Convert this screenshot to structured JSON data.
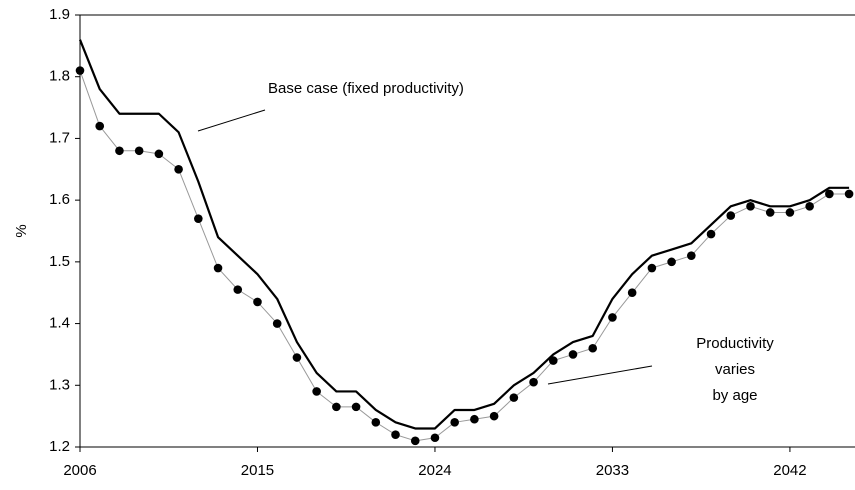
{
  "chart_data": {
    "type": "line",
    "y_label": "%",
    "x": [
      2006,
      2007,
      2008,
      2009,
      2010,
      2011,
      2012,
      2013,
      2014,
      2015,
      2016,
      2017,
      2018,
      2019,
      2020,
      2021,
      2022,
      2023,
      2024,
      2025,
      2026,
      2027,
      2028,
      2029,
      2030,
      2031,
      2032,
      2033,
      2034,
      2035,
      2036,
      2037,
      2038,
      2039,
      2040,
      2041,
      2042,
      2043,
      2044,
      2045
    ],
    "series": [
      {
        "name": "Base case (fixed productivity)",
        "color": "#000000",
        "marker": false,
        "values": [
          1.86,
          1.78,
          1.74,
          1.74,
          1.74,
          1.71,
          1.63,
          1.54,
          1.51,
          1.48,
          1.44,
          1.37,
          1.32,
          1.29,
          1.29,
          1.26,
          1.24,
          1.23,
          1.23,
          1.26,
          1.26,
          1.27,
          1.3,
          1.32,
          1.35,
          1.37,
          1.38,
          1.44,
          1.48,
          1.51,
          1.52,
          1.53,
          1.56,
          1.59,
          1.6,
          1.59,
          1.59,
          1.6,
          1.62,
          1.62
        ]
      },
      {
        "label_lines": [
          "Productivity",
          "varies",
          "by age"
        ],
        "color": "#999999",
        "marker": true,
        "values": [
          1.81,
          1.72,
          1.68,
          1.68,
          1.675,
          1.65,
          1.57,
          1.49,
          1.455,
          1.435,
          1.4,
          1.345,
          1.29,
          1.265,
          1.265,
          1.24,
          1.22,
          1.21,
          1.215,
          1.24,
          1.245,
          1.25,
          1.28,
          1.305,
          1.34,
          1.35,
          1.36,
          1.41,
          1.45,
          1.49,
          1.5,
          1.51,
          1.545,
          1.575,
          1.59,
          1.58,
          1.58,
          1.59,
          1.61,
          1.61
        ]
      }
    ],
    "xlim": [
      2006,
      2045.3
    ],
    "xticks": [
      2006,
      2015,
      2024,
      2033,
      2042
    ],
    "ylim": [
      1.2,
      1.9
    ],
    "yticks": [
      1.2,
      1.3,
      1.4,
      1.5,
      1.6,
      1.7,
      1.8,
      1.9
    ],
    "grid": false
  }
}
